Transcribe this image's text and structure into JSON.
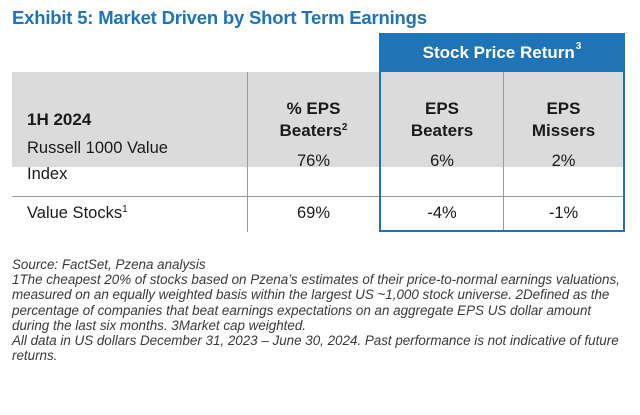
{
  "title": "Exhibit 5: Market Driven by Short Term Earnings",
  "table": {
    "group_header": "Stock Price Return",
    "group_header_sup": "3",
    "col_headers": {
      "period": "1H 2024",
      "eps_beaters_pct_line1": "% EPS",
      "eps_beaters_pct_line2": "Beaters",
      "eps_beaters_pct_sup": "2",
      "eps_beaters_line1": "EPS",
      "eps_beaters_line2": "Beaters",
      "eps_missers_line1": "EPS",
      "eps_missers_line2": "Missers"
    },
    "rows": [
      {
        "label_line1": "Russell 1000 Value",
        "label_line2": "Index",
        "pct_eps_beaters": "76%",
        "eps_beaters": "6%",
        "eps_missers": "2%"
      },
      {
        "label_line1": "Value Stocks",
        "label_sup": "1",
        "pct_eps_beaters": "69%",
        "eps_beaters": "-4%",
        "eps_missers": "-1%"
      }
    ]
  },
  "footnotes": {
    "source": "Source: FactSet, Pzena analysis",
    "notes": "1The cheapest 20% of stocks based on Pzena’s estimates of their price-to-normal earnings valuations, measured on an equally weighted basis within the largest US ~1,000 stock universe. 2Defined as the percentage of companies that beat earnings expectations on an aggregate EPS US dollar amount during the last six months. 3Market cap weighted.",
    "disclaimer": "All data in US dollars December 31, 2023 – June 30, 2024. Past performance is not indicative of future returns."
  },
  "colors": {
    "accent_blue": "#1f73b7",
    "header_gray": "#dbdbdb"
  }
}
